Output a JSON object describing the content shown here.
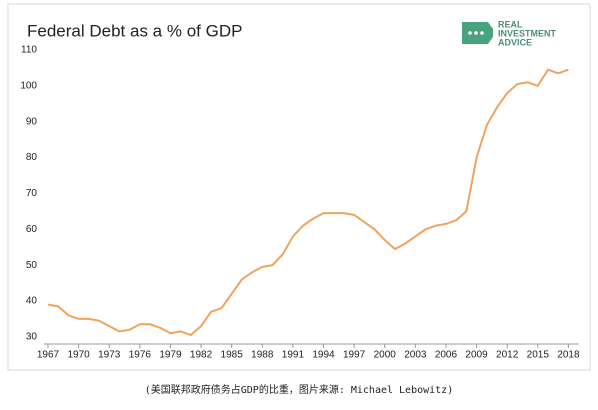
{
  "chart_data": {
    "type": "line",
    "title": "Federal Debt as a % of GDP",
    "x": [
      1967,
      1968,
      1969,
      1970,
      1971,
      1972,
      1973,
      1974,
      1975,
      1976,
      1977,
      1978,
      1979,
      1980,
      1981,
      1982,
      1983,
      1984,
      1985,
      1986,
      1987,
      1988,
      1989,
      1990,
      1991,
      1992,
      1993,
      1994,
      1995,
      1996,
      1997,
      1998,
      1999,
      2000,
      2001,
      2002,
      2003,
      2004,
      2005,
      2006,
      2007,
      2008,
      2009,
      2010,
      2011,
      2012,
      2013,
      2014,
      2015,
      2016,
      2017,
      2018
    ],
    "series": [
      {
        "color": "#f0a35c",
        "values": [
          39,
          38.5,
          36,
          35,
          35,
          34.5,
          33,
          31.5,
          32,
          33.5,
          33.5,
          32.5,
          31,
          31.5,
          30.5,
          33,
          37,
          38,
          42,
          46,
          48,
          49.5,
          50,
          53,
          58,
          61,
          63,
          64.5,
          64.5,
          64.5,
          64,
          62,
          60,
          57,
          54.5,
          56,
          58,
          60,
          61,
          61.5,
          62.5,
          65,
          80,
          89,
          94,
          98,
          100.5,
          101,
          100,
          104.5,
          103.5,
          104.5
        ]
      }
    ],
    "xlim": [
      1967,
      2019
    ],
    "xticks": [
      1967,
      1970,
      1973,
      1976,
      1979,
      1982,
      1985,
      1988,
      1991,
      1994,
      1997,
      2000,
      2003,
      2006,
      2009,
      2012,
      2015,
      2018
    ],
    "ylim": [
      28,
      110
    ],
    "yticks": [
      30,
      40,
      50,
      60,
      70,
      80,
      90,
      100,
      110
    ],
    "grid": false
  },
  "logo": {
    "line1": "REAL",
    "line2": "INVESTMENT",
    "line3": "ADVICE"
  },
  "caption": "(美国联邦政府债务占GDP的比重，图片来源: Michael Lebowitz)"
}
